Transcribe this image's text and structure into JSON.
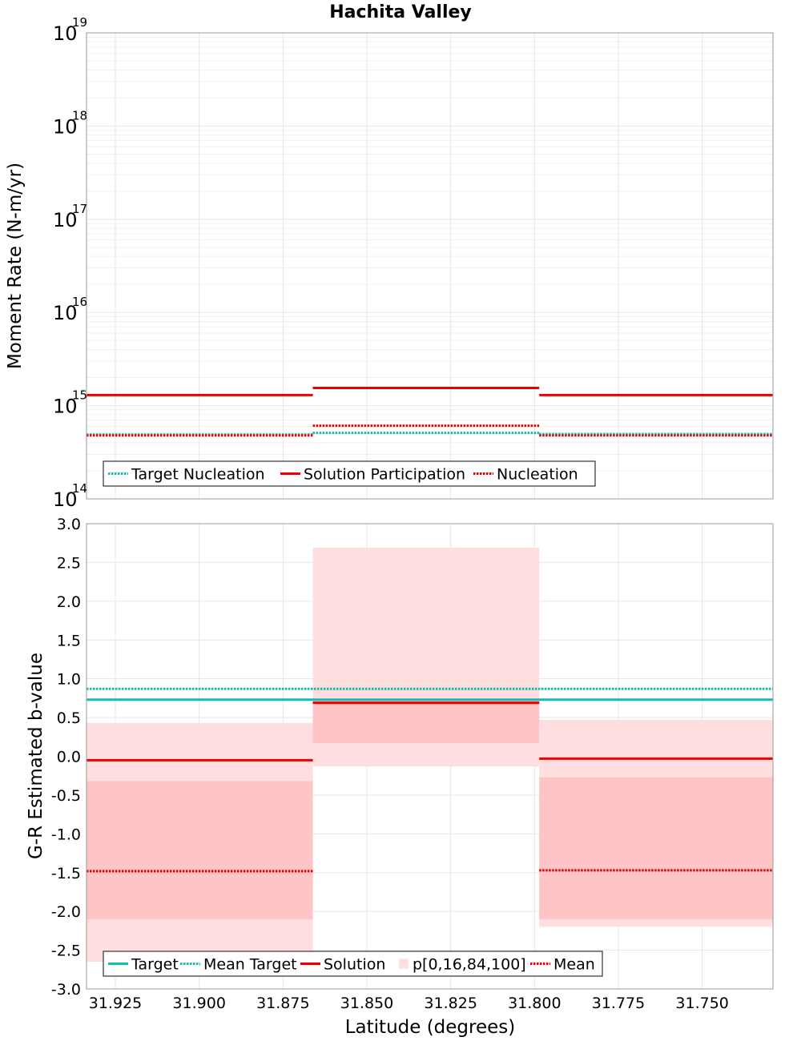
{
  "title": "Hachita Valley",
  "colors": {
    "target": "#17b8b8",
    "solution": "#ee0000",
    "band_outer": "#ffdedf",
    "band_inner": "#ffc4c5",
    "grid": "#e6e6e6",
    "axis": "#999999"
  },
  "chart_data": [
    {
      "type": "line",
      "title": "Hachita Valley",
      "ylabel": "Moment Rate (N-m/yr)",
      "xlabel": "",
      "yscale": "log",
      "ylim": [
        100000000000000.0,
        1e+19
      ],
      "xlim": [
        31.9336,
        31.7289
      ],
      "x_reversed": true,
      "grid": true,
      "y_ticks": [
        {
          "base": "10",
          "exp": "14",
          "value": 100000000000000.0
        },
        {
          "base": "10",
          "exp": "15",
          "value": 1000000000000000.0
        },
        {
          "base": "10",
          "exp": "16",
          "value": 1e+16
        },
        {
          "base": "10",
          "exp": "17",
          "value": 1e+17
        },
        {
          "base": "10",
          "exp": "18",
          "value": 1e+18
        },
        {
          "base": "10",
          "exp": "19",
          "value": 1e+19
        }
      ],
      "segments": [
        [
          31.9336,
          31.8661
        ],
        [
          31.8661,
          31.7986
        ],
        [
          31.7986,
          31.7289
        ]
      ],
      "series": [
        {
          "name": "Target Nucleation",
          "style": "dotted",
          "color": "#17b8b8",
          "values": [
            490000000000000.0,
            510000000000000.0,
            495000000000000.0
          ]
        },
        {
          "name": "Solution Participation",
          "style": "solid",
          "color": "#ee0000",
          "values": [
            1300000000000000.0,
            1550000000000000.0,
            1300000000000000.0
          ]
        },
        {
          "name": "Nucleation",
          "style": "dotted",
          "color": "#ee0000",
          "values": [
            480000000000000.0,
            610000000000000.0,
            480000000000000.0
          ]
        }
      ],
      "legend": [
        {
          "label": "Target Nucleation",
          "style": "dotted",
          "color": "#17b8b8"
        },
        {
          "label": "Solution Participation",
          "style": "solid",
          "color": "#ee0000"
        },
        {
          "label": "Nucleation",
          "style": "dotted",
          "color": "#ee0000"
        }
      ],
      "legend_position": "bottom-left"
    },
    {
      "type": "line",
      "ylabel": "G-R Estimated b-value",
      "xlabel": "Latitude (degrees)",
      "ylim": [
        -3.0,
        3.0
      ],
      "xlim": [
        31.9336,
        31.7289
      ],
      "x_reversed": true,
      "grid": true,
      "y_ticks": [
        "-3.0",
        "-2.5",
        "-2.0",
        "-1.5",
        "-1.0",
        "-0.5",
        "0.0",
        "0.5",
        "1.0",
        "1.5",
        "2.0",
        "2.5",
        "3.0"
      ],
      "x_ticks": [
        "31.925",
        "31.900",
        "31.875",
        "31.850",
        "31.825",
        "31.800",
        "31.775",
        "31.750"
      ],
      "segments": [
        [
          31.9336,
          31.8661
        ],
        [
          31.8661,
          31.7986
        ],
        [
          31.7986,
          31.7289
        ]
      ],
      "target": 0.73,
      "mean_target": 0.87,
      "solution": [
        -0.05,
        0.69,
        -0.03
      ],
      "mean": [
        -1.48,
        0.69,
        -1.47
      ],
      "percentiles": {
        "p0": [
          -2.65,
          -0.13,
          -2.2
        ],
        "p16": [
          -2.1,
          0.17,
          -2.1
        ],
        "p84": [
          -0.32,
          0.72,
          -0.27
        ],
        "p100": [
          0.43,
          2.69,
          0.47
        ]
      },
      "legend": [
        {
          "label": "Target",
          "style": "solid",
          "color": "#17b8b8"
        },
        {
          "label": "Mean Target",
          "style": "dotted",
          "color": "#17b8b8"
        },
        {
          "label": "Solution",
          "style": "solid",
          "color": "#ee0000"
        },
        {
          "label": "p[0,16,84,100]",
          "style": "band",
          "color": "#ffdedf"
        },
        {
          "label": "Mean",
          "style": "dotted",
          "color": "#ee0000"
        }
      ],
      "legend_position": "bottom-left"
    }
  ]
}
